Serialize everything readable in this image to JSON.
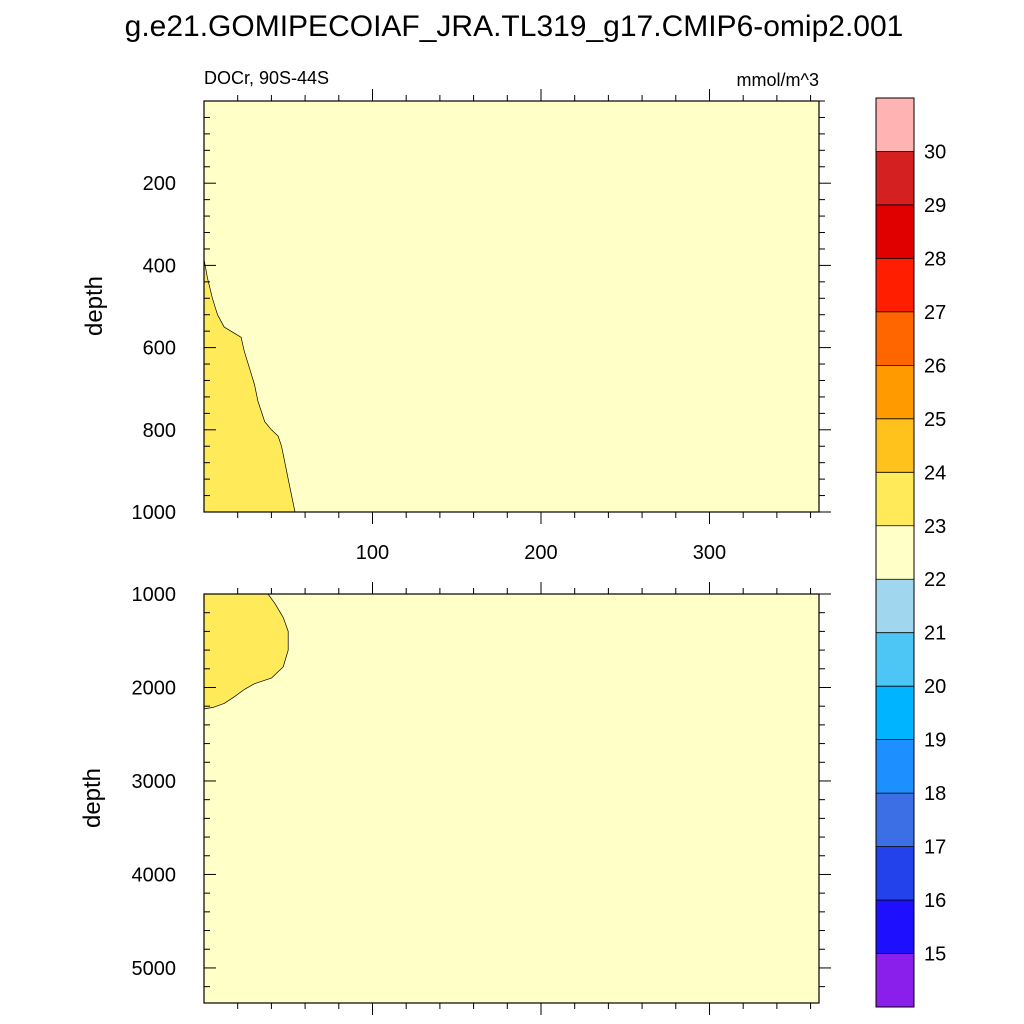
{
  "title": "g.e21.GOMIPECOIAF_JRA.TL319_g17.CMIP6-omip2.001",
  "chart_data": [
    {
      "type": "heatmap",
      "panel": "upper",
      "subtitle_left": "DOCr, 90S-44S",
      "subtitle_right": "mmol/m^3",
      "xlabel": "",
      "ylabel": "depth",
      "xlim": [
        0,
        365
      ],
      "ylim": [
        0,
        1000
      ],
      "y_reversed": true,
      "x_ticks": [
        100,
        200,
        300
      ],
      "y_ticks": [
        200,
        400,
        600,
        800,
        1000
      ],
      "background_level": "22-23",
      "regions": [
        {
          "level": "23-24",
          "contour": [
            [
              0,
              385
            ],
            [
              2,
              430
            ],
            [
              5,
              480
            ],
            [
              8,
              520
            ],
            [
              12,
              550
            ],
            [
              18,
              565
            ],
            [
              22,
              575
            ],
            [
              24,
              610
            ],
            [
              27,
              650
            ],
            [
              30,
              690
            ],
            [
              32,
              730
            ],
            [
              36,
              780
            ],
            [
              40,
              800
            ],
            [
              44,
              815
            ],
            [
              46,
              840
            ],
            [
              48,
              880
            ],
            [
              50,
              920
            ],
            [
              52,
              960
            ],
            [
              54,
              1000
            ],
            [
              0,
              1000
            ]
          ]
        }
      ]
    },
    {
      "type": "heatmap",
      "panel": "lower",
      "xlabel": "",
      "ylabel": "depth",
      "xlim": [
        0,
        365
      ],
      "ylim": [
        1000,
        5375
      ],
      "y_reversed": true,
      "x_ticks": [
        100,
        200,
        300
      ],
      "y_ticks": [
        1000,
        2000,
        3000,
        4000,
        5000
      ],
      "background_level": "22-23",
      "regions": [
        {
          "level": "23-24",
          "contour": [
            [
              0,
              1000
            ],
            [
              38,
              1000
            ],
            [
              42,
              1100
            ],
            [
              47,
              1250
            ],
            [
              50,
              1400
            ],
            [
              50,
              1600
            ],
            [
              47,
              1780
            ],
            [
              40,
              1900
            ],
            [
              30,
              1960
            ],
            [
              24,
              2020
            ],
            [
              18,
              2100
            ],
            [
              12,
              2170
            ],
            [
              6,
              2210
            ],
            [
              0,
              2230
            ]
          ]
        }
      ]
    }
  ],
  "colorbar": {
    "labels": [
      "15",
      "16",
      "17",
      "18",
      "19",
      "20",
      "21",
      "22",
      "23",
      "24",
      "25",
      "26",
      "27",
      "28",
      "29",
      "30"
    ],
    "colors": [
      "#FFB3B3",
      "#D42020",
      "#E00000",
      "#FF1E00",
      "#FF6600",
      "#FF9A00",
      "#FFC11C",
      "#FFEA5A",
      "#FFFFC8",
      "#A0D6EE",
      "#4DC6F6",
      "#00B4FF",
      "#1E8FFF",
      "#3C6FE6",
      "#2342EC",
      "#1E10FF",
      "#8A1EEA"
    ]
  }
}
